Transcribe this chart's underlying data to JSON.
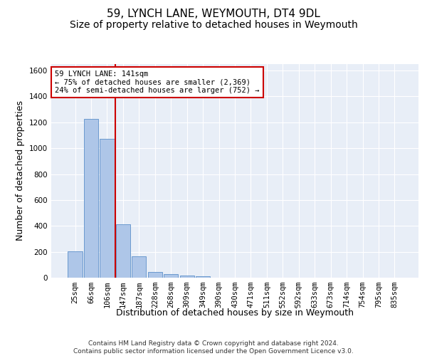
{
  "title": "59, LYNCH LANE, WEYMOUTH, DT4 9DL",
  "subtitle": "Size of property relative to detached houses in Weymouth",
  "xlabel": "Distribution of detached houses by size in Weymouth",
  "ylabel": "Number of detached properties",
  "categories": [
    "25sqm",
    "66sqm",
    "106sqm",
    "147sqm",
    "187sqm",
    "228sqm",
    "268sqm",
    "309sqm",
    "349sqm",
    "390sqm",
    "430sqm",
    "471sqm",
    "511sqm",
    "552sqm",
    "592sqm",
    "633sqm",
    "673sqm",
    "714sqm",
    "754sqm",
    "795sqm",
    "835sqm"
  ],
  "values": [
    205,
    1225,
    1075,
    410,
    165,
    45,
    28,
    18,
    13,
    0,
    0,
    0,
    0,
    0,
    0,
    0,
    0,
    0,
    0,
    0,
    0
  ],
  "bar_color": "#aec6e8",
  "bar_edge_color": "#5b8fc9",
  "property_line_color": "#cc0000",
  "annotation_text": "59 LYNCH LANE: 141sqm\n← 75% of detached houses are smaller (2,369)\n24% of semi-detached houses are larger (752) →",
  "annotation_box_color": "#ffffff",
  "annotation_box_edge": "#cc0000",
  "ylim": [
    0,
    1650
  ],
  "yticks": [
    0,
    200,
    400,
    600,
    800,
    1000,
    1200,
    1400,
    1600
  ],
  "plot_bg_color": "#e8eef7",
  "footer_text": "Contains HM Land Registry data © Crown copyright and database right 2024.\nContains public sector information licensed under the Open Government Licence v3.0.",
  "title_fontsize": 11,
  "subtitle_fontsize": 10,
  "xlabel_fontsize": 9,
  "ylabel_fontsize": 9,
  "tick_fontsize": 7.5
}
